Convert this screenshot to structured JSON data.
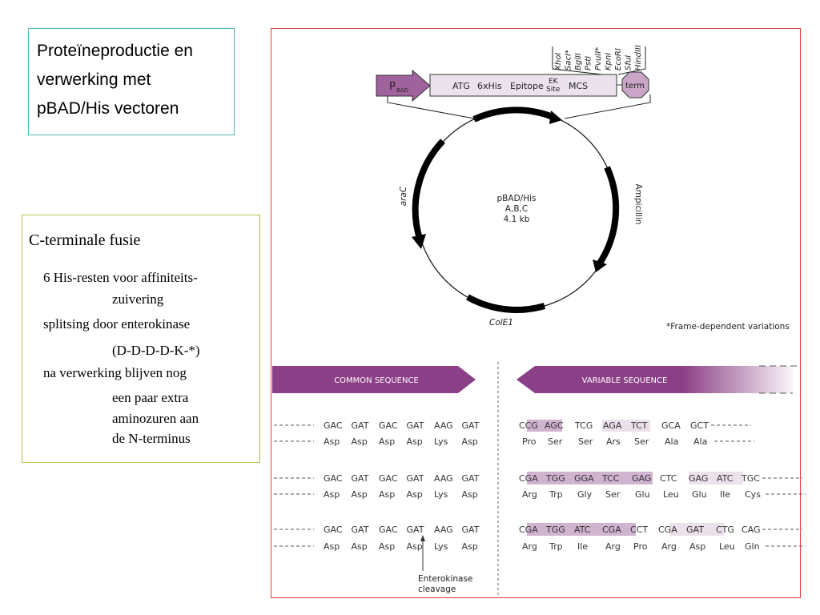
{
  "title_box": {
    "lines": [
      "Proteïneproductie en",
      "verwerking met",
      "pBAD/His vectoren"
    ]
  },
  "info_box": {
    "heading": "C-terminale fusie",
    "bullets": [
      {
        "line1": "6 His-resten voor affiniteits-",
        "line2": "zuivering"
      },
      {
        "line1": "splitsing door enterokinase",
        "line2": "(D-D-D-D-K-*)"
      },
      {
        "line1": "na verwerking blijven nog",
        "line2": "een paar extra",
        "line3": "aminozuren aan",
        "line4": "de N-terminus"
      }
    ]
  },
  "diagram": {
    "colors": {
      "purple": "#8b3f86",
      "light_purple": "#e8dcea",
      "mid_purple": "#c9a6c7",
      "highlight_dark": "#cfb3cf",
      "highlight_light": "#ebe1eb",
      "border": "#e23b3b"
    },
    "promoter": {
      "p": "P",
      "sub": "BAD"
    },
    "cassette": {
      "atg": "ATG",
      "his": "6xHis",
      "epitope": "Epitope",
      "ek1": "EK",
      "ek2": "Site",
      "mcs": "MCS"
    },
    "term": "term",
    "enzymes": [
      "XhoI",
      "SacI*",
      "BglII",
      "PstI",
      "PvuII*",
      "KpnI",
      "EcoRI",
      "SfuI",
      "HindIII"
    ],
    "plasmid": {
      "name": "pBAD/His",
      "variants": "A,B,C",
      "size": "4.1 kb"
    },
    "genes": {
      "araC": "araC",
      "amp": "Ampicillin",
      "ori": "ColE1"
    },
    "footnote": "*Frame-dependent variations",
    "common_banner": "COMMON SEQUENCE",
    "variable_banner": "VARIABLE SEQUENCE",
    "common_rows": [
      {
        "codons": [
          "GAC",
          "GAT",
          "GAC",
          "GAT",
          "AAG",
          "GAT"
        ],
        "aa": [
          "Asp",
          "Asp",
          "Asp",
          "Asp",
          "Lys",
          "Asp"
        ]
      },
      {
        "codons": [
          "GAC",
          "GAT",
          "GAC",
          "GAT",
          "AAG",
          "GAT"
        ],
        "aa": [
          "Asp",
          "Asp",
          "Asp",
          "Asp",
          "Lys",
          "Asp"
        ]
      },
      {
        "codons": [
          "GAC",
          "GAT",
          "GAC",
          "GAT",
          "AAG",
          "GAT"
        ],
        "aa": [
          "Asp",
          "Asp",
          "Asp",
          "Asp",
          "Lys",
          "Asp"
        ]
      }
    ],
    "variable_rows": [
      {
        "codons": [
          "CCG",
          "AGC",
          "TCG",
          "AGA",
          "TCT",
          "GCA",
          "GCT"
        ],
        "aa": [
          "Pro",
          "Ser",
          "Ser",
          "Ars",
          "Ser",
          "Ala",
          "Ala"
        ]
      },
      {
        "codons": [
          "CGA",
          "TGG",
          "GGA",
          "TCC",
          "GAG",
          "CTC",
          "GAG",
          "ATC",
          "TGC"
        ],
        "aa": [
          "Arg",
          "Trp",
          "Gly",
          "Ser",
          "Glu",
          "Leu",
          "Glu",
          "Ile",
          "Cys"
        ]
      },
      {
        "codons": [
          "CGA",
          "TGG",
          "ATC",
          "CGA",
          "CCT",
          "CGA",
          "GAT",
          "CTG",
          "CAG"
        ],
        "aa": [
          "Arg",
          "Trp",
          "Ile",
          "Arg",
          "Pro",
          "Arg",
          "Asp",
          "Leu",
          "Gln"
        ]
      }
    ],
    "cleavage_label": {
      "line1": "Enterokinase",
      "line2": "cleavage"
    }
  }
}
